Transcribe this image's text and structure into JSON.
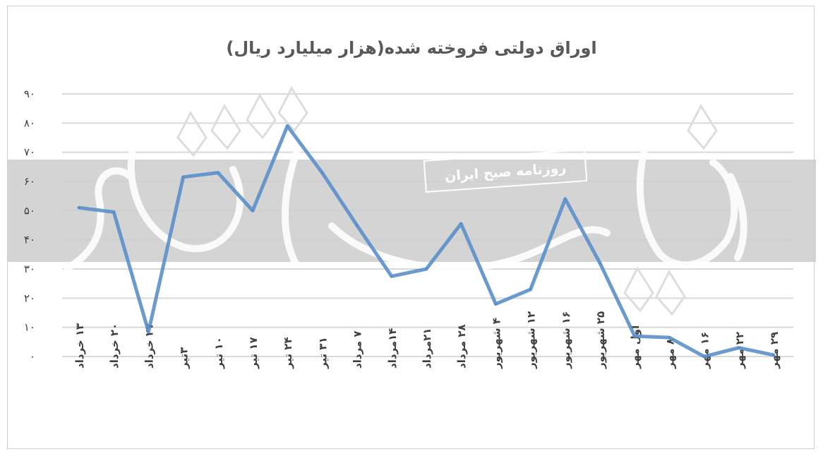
{
  "chart_data": {
    "type": "line",
    "title": "اوراق دولتی فروخته شده(هزار میلیارد ریال)",
    "xlabel": "",
    "ylabel": "",
    "ylim": [
      0,
      90
    ],
    "yticks": [
      "۰",
      "۱۰",
      "۲۰",
      "۳۰",
      "۴۰",
      "۵۰",
      "۶۰",
      "۷۰",
      "۸۰",
      "۹۰"
    ],
    "ytick_values": [
      0,
      10,
      20,
      30,
      40,
      50,
      60,
      70,
      80,
      90
    ],
    "grid": true,
    "legend": "none",
    "categories": [
      "۱۳ خرداد",
      "۲۰ خرداد",
      "۲۷ خرداد",
      "۳تیر",
      "۱۰ تیر",
      "۱۷ تیر",
      "۲۴ تیر",
      "۳۱ تیر",
      "۷ مرداد",
      "۱۴مرداد",
      "۲۱مرداد",
      "۲۸ مرداد",
      "۴ شهریور",
      "۱۲ شهریور",
      "۱۶ شهریور",
      "۲۵ شهریور",
      "اول مهر",
      "۸ مهر",
      "۱۶ مهر",
      "۲۲ مهر",
      "۲۹ مهر"
    ],
    "series": [
      {
        "values": [
          51,
          49.5,
          8.5,
          61.5,
          63,
          50,
          79,
          63,
          45,
          27.5,
          30,
          45.5,
          18,
          23,
          54,
          32,
          7,
          6.5,
          0,
          3,
          0.5
        ]
      }
    ],
    "color": "#5b8fc9"
  },
  "watermark": {
    "label": "روزنامه صبح ایران",
    "band_color": "#cccccc"
  }
}
